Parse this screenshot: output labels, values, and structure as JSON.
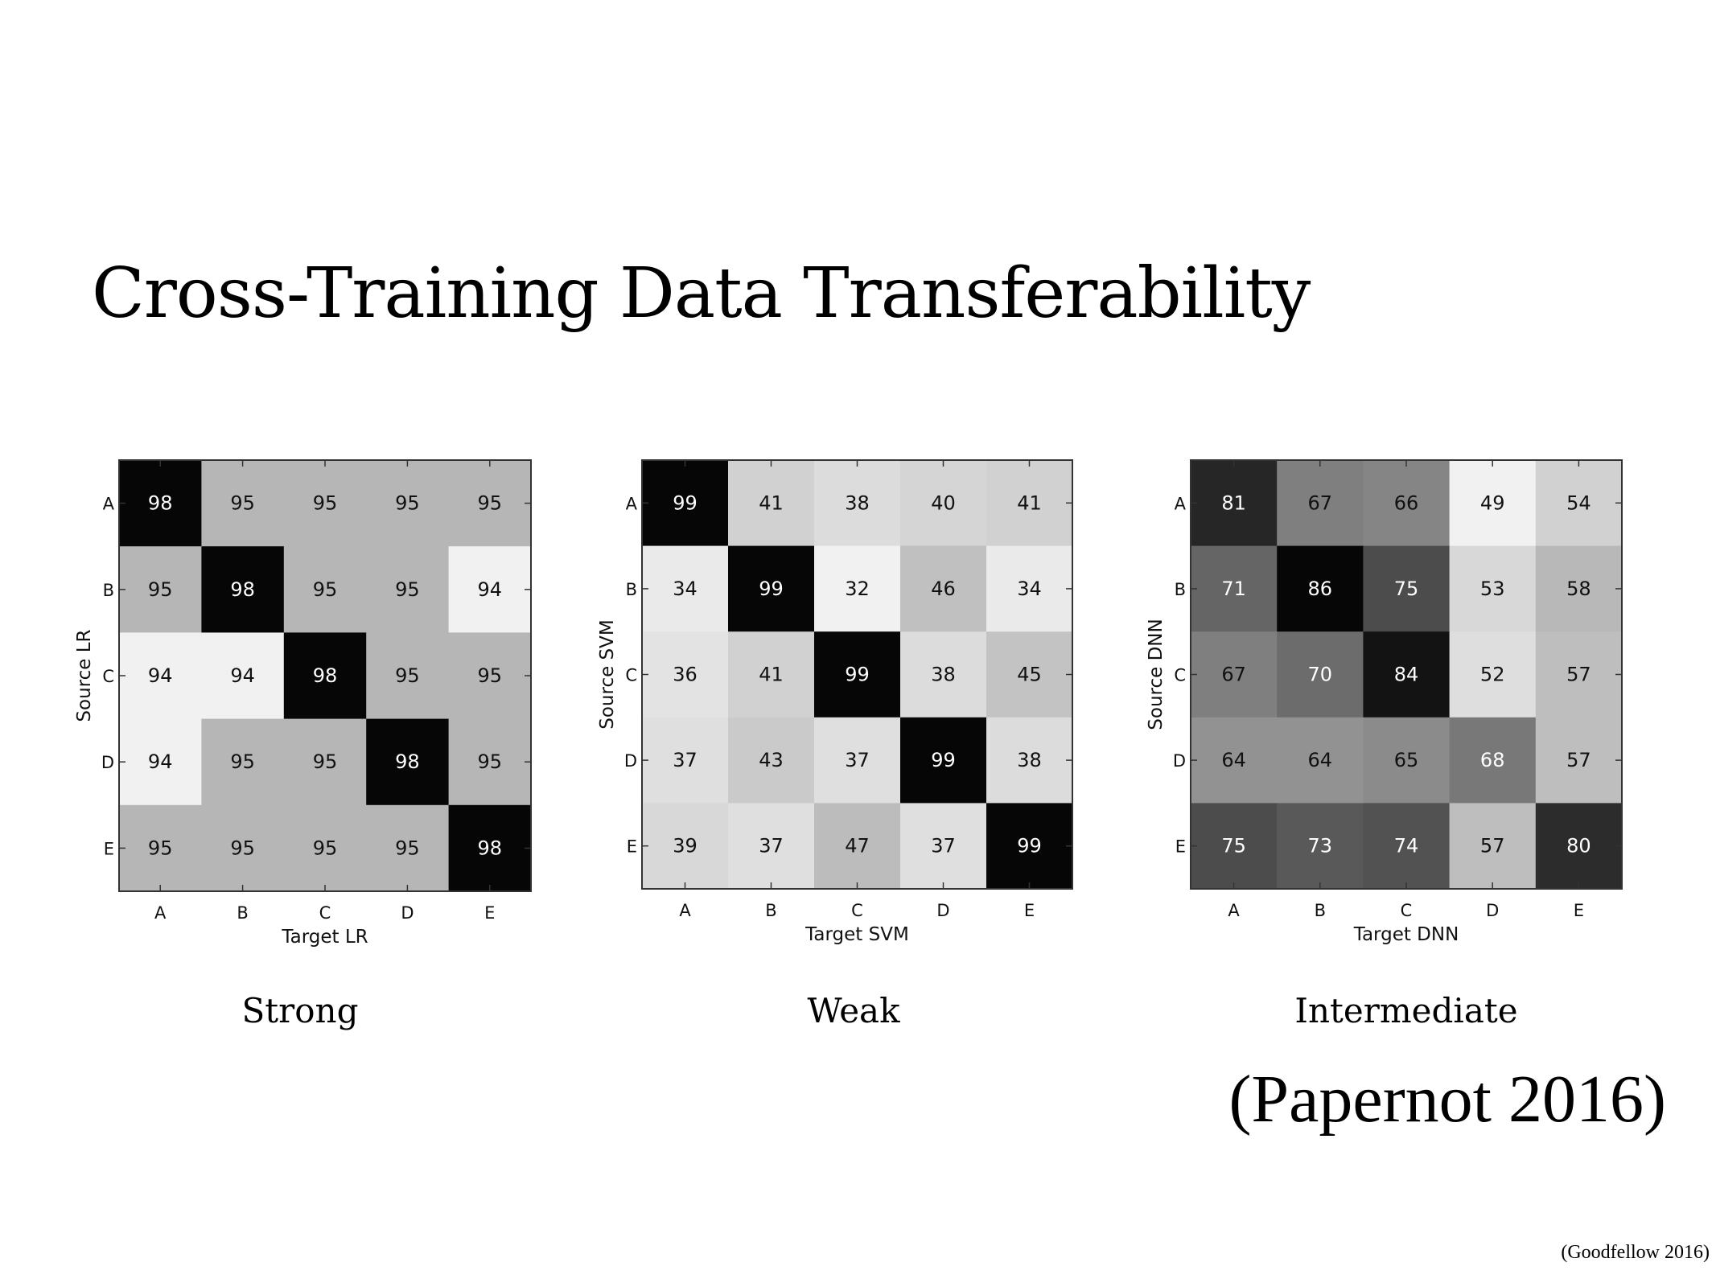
{
  "slide": {
    "title": "Cross-Training Data Transferability",
    "citation": "(Papernot 2016)",
    "footer": "(Goodfellow 2016)"
  },
  "chart_data": [
    {
      "type": "heatmap",
      "caption": "Strong",
      "xlabel": "Target LR",
      "ylabel": "Source LR",
      "x_categories": [
        "A",
        "B",
        "C",
        "D",
        "E"
      ],
      "y_categories": [
        "A",
        "B",
        "C",
        "D",
        "E"
      ],
      "values": [
        [
          98,
          95,
          95,
          95,
          95
        ],
        [
          95,
          98,
          95,
          95,
          94
        ],
        [
          94,
          94,
          98,
          95,
          95
        ],
        [
          94,
          95,
          95,
          98,
          95
        ],
        [
          95,
          95,
          95,
          95,
          98
        ]
      ],
      "colormap": "gray_r"
    },
    {
      "type": "heatmap",
      "caption": "Weak",
      "xlabel": "Target SVM",
      "ylabel": "Source SVM",
      "x_categories": [
        "A",
        "B",
        "C",
        "D",
        "E"
      ],
      "y_categories": [
        "A",
        "B",
        "C",
        "D",
        "E"
      ],
      "values": [
        [
          99,
          41,
          38,
          40,
          41
        ],
        [
          34,
          99,
          32,
          46,
          34
        ],
        [
          36,
          41,
          99,
          38,
          45
        ],
        [
          37,
          43,
          37,
          99,
          38
        ],
        [
          39,
          37,
          47,
          37,
          99
        ]
      ],
      "colormap": "gray_r"
    },
    {
      "type": "heatmap",
      "caption": "Intermediate",
      "xlabel": "Target DNN",
      "ylabel": "Source DNN",
      "x_categories": [
        "A",
        "B",
        "C",
        "D",
        "E"
      ],
      "y_categories": [
        "A",
        "B",
        "C",
        "D",
        "E"
      ],
      "values": [
        [
          81,
          67,
          66,
          49,
          54
        ],
        [
          71,
          86,
          75,
          53,
          58
        ],
        [
          67,
          70,
          84,
          52,
          57
        ],
        [
          64,
          64,
          65,
          68,
          57
        ],
        [
          75,
          73,
          74,
          57,
          80
        ]
      ],
      "colormap": "gray_r"
    }
  ]
}
